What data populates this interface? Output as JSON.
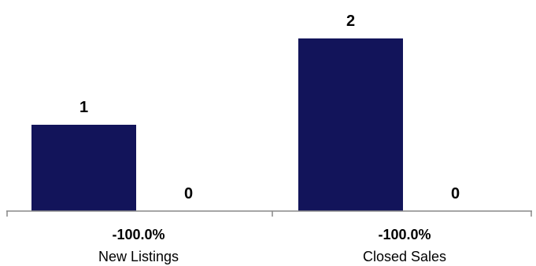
{
  "chart_data": {
    "type": "bar",
    "categories": [
      {
        "name": "New Listings",
        "change": "-100.0%"
      },
      {
        "name": "Closed Sales",
        "change": "-100.0%"
      }
    ],
    "series": [
      {
        "values": [
          1,
          2
        ],
        "labels": [
          "1",
          "2"
        ]
      },
      {
        "values": [
          0,
          0
        ],
        "labels": [
          "0",
          "0"
        ]
      }
    ],
    "ylim": [
      0,
      2.1
    ],
    "grid": false,
    "colors": {
      "bar": "#12145a",
      "axis": "#888888"
    }
  }
}
